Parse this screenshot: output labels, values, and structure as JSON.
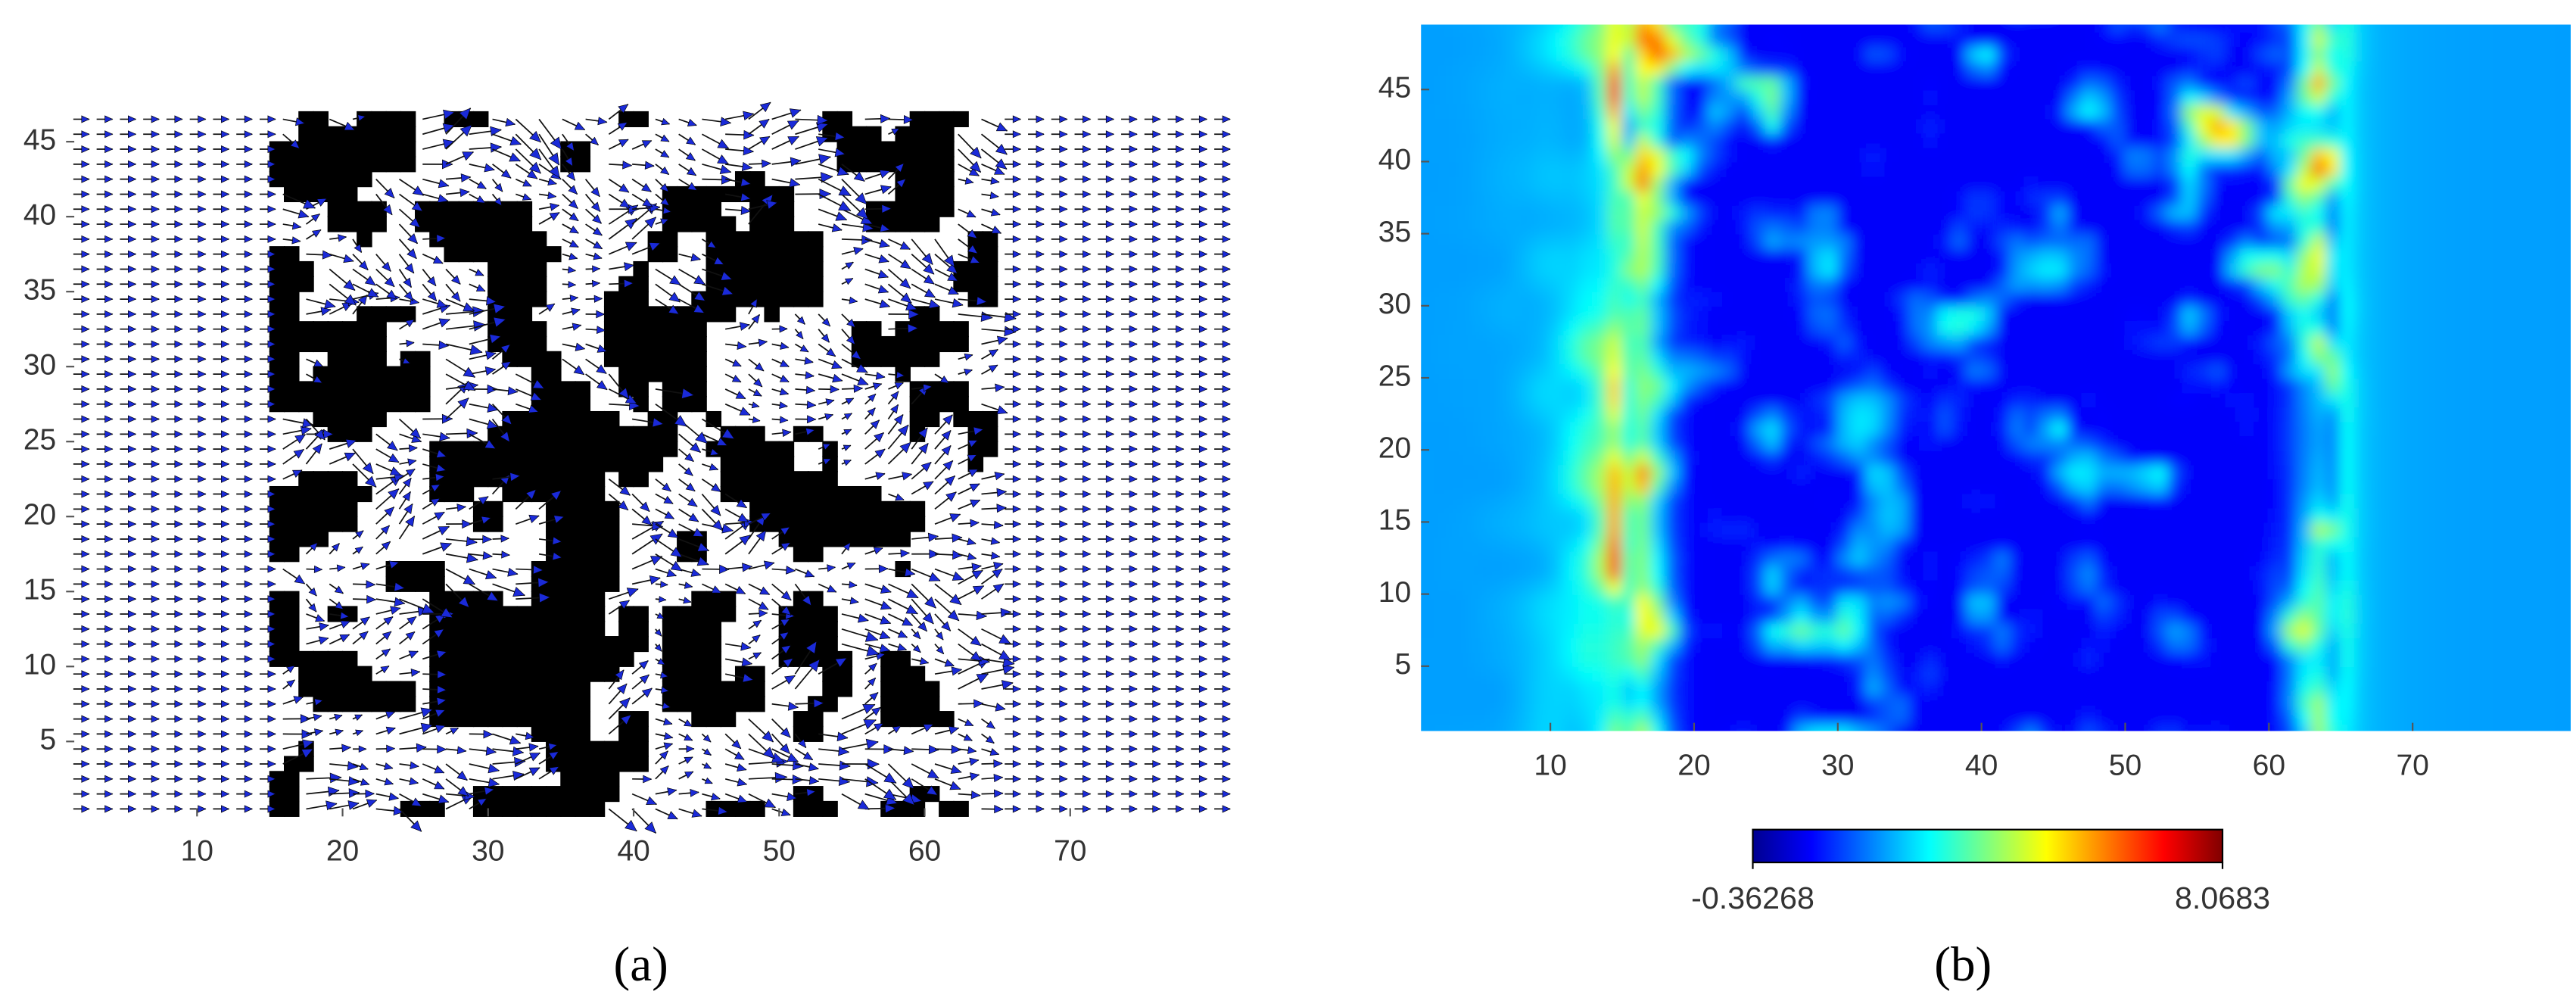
{
  "chart_data": [
    {
      "type": "quiver",
      "caption": "(a)",
      "xlim": [
        1,
        80
      ],
      "ylim": [
        0,
        47
      ],
      "xticks": [
        10,
        20,
        30,
        40,
        50,
        60,
        70
      ],
      "yticks": [
        5,
        10,
        15,
        20,
        25,
        30,
        35,
        40,
        45
      ]
    },
    {
      "type": "heatmap",
      "caption": "(b)",
      "xlim": [
        1,
        81
      ],
      "ylim": [
        0.5,
        49.5
      ],
      "xticks": [
        10,
        20,
        30,
        40,
        50,
        60,
        70
      ],
      "yticks": [
        5,
        10,
        15,
        20,
        25,
        30,
        35,
        40,
        45
      ],
      "colormap": "jet",
      "clim": [
        -0.36268,
        8.0683
      ],
      "cticks": [
        -0.36268,
        8.0683
      ]
    }
  ]
}
